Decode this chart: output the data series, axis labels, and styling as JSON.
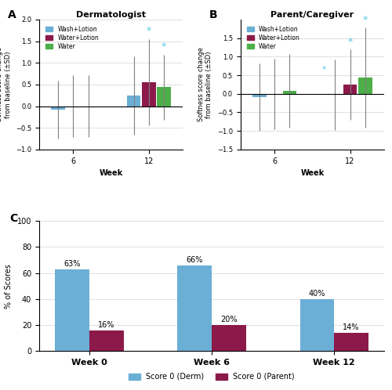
{
  "panel_A_title": "Dermatologist",
  "panel_B_title": "Parent/Caregiver",
  "panel_A_label": "A",
  "panel_B_label": "B",
  "panel_C_label": "C",
  "ylabel_AB": "Softness score change\nfrom baseline (±SD)",
  "xlabel_AB": "Week",
  "colors": {
    "wash_lotion": "#6baed6",
    "water_lotion": "#8B1A4A",
    "water": "#4daf4a"
  },
  "panel_A": {
    "week6": {
      "wash_lotion": {
        "val": -0.08,
        "err": 0.67
      },
      "water_lotion": {
        "val": 0.0,
        "err": 0.72
      },
      "water": {
        "val": 0.0,
        "err": 0.72
      }
    },
    "week12": {
      "wash_lotion": {
        "val": 0.25,
        "err": 0.9
      },
      "water_lotion": {
        "val": 0.55,
        "err": 1.0
      },
      "water": {
        "val": 0.44,
        "err": 0.75
      }
    },
    "ylim": [
      -1.0,
      2.0
    ],
    "yticks": [
      -1.0,
      -0.5,
      0.0,
      0.5,
      1.0,
      1.5,
      2.0
    ]
  },
  "panel_B": {
    "week6": {
      "wash_lotion": {
        "val": -0.09,
        "err": 0.9
      },
      "water_lotion": {
        "val": 0.0,
        "err": 0.95
      },
      "water": {
        "val": 0.08,
        "err": 1.0
      }
    },
    "week12": {
      "wash_lotion": {
        "val": -0.03,
        "err": 0.95
      },
      "water_lotion": {
        "val": 0.25,
        "err": 0.95
      },
      "water": {
        "val": 0.44,
        "err": 1.35
      }
    },
    "ylim": [
      -1.5,
      2.0
    ],
    "yticks": [
      -1.5,
      -1.0,
      -0.5,
      0.0,
      0.5,
      1.0,
      1.5
    ]
  },
  "panel_C": {
    "groups": [
      "Week 0",
      "Week 6",
      "Week 12"
    ],
    "derm": [
      63,
      66,
      40
    ],
    "parent": [
      16,
      20,
      14
    ],
    "derm_color": "#6baed6",
    "parent_color": "#8B1A4A",
    "ylim": [
      0,
      100
    ],
    "yticks": [
      0,
      20,
      40,
      60,
      80,
      100
    ],
    "ylabel": "% of Scores",
    "legend_derm": "Score 0 (Derm)",
    "legend_parent": "Score 0 (Parent)"
  },
  "star_color": "#5bc8e8",
  "group_labels": [
    "Wash+Lotion",
    "Water+Lotion",
    "Water"
  ]
}
